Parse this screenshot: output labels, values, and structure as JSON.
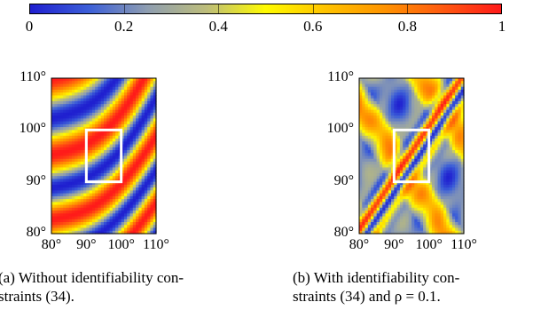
{
  "colorbar": {
    "colors": [
      "#1f1fd0",
      "#3c5fd8",
      "#8f9eb0",
      "#bdbd7a",
      "#fffb00",
      "#ffc400",
      "#ff9400",
      "#ff5a10",
      "#ff1a1a"
    ],
    "ticks": [
      "0",
      "0.2",
      "0.4",
      "0.6",
      "0.8",
      "1"
    ]
  },
  "panels": [
    {
      "id": "a",
      "xticks": [
        "80°",
        "90°",
        "100°",
        "110°"
      ],
      "yticks": [
        "80°",
        "90°",
        "100°",
        "110°"
      ],
      "caption_line1": "(a) Without identifiability con-",
      "caption_line2": "straints (34).",
      "highlight_box": {
        "x0": 90,
        "x1": 100,
        "y0": 90,
        "y1": 100
      }
    },
    {
      "id": "b",
      "xticks": [
        "80°",
        "90°",
        "100°",
        "110°"
      ],
      "yticks": [
        "80°",
        "90°",
        "100°",
        "110°"
      ],
      "caption_line1": "(b) With identifiability con-",
      "caption_line2": "straints (34) and ρ = 0.1.",
      "highlight_box": {
        "x0": 90,
        "x1": 100,
        "y0": 90,
        "y1": 100
      }
    }
  ],
  "chart_data": [
    {
      "type": "heatmap",
      "x_range": [
        80,
        110
      ],
      "y_range": [
        80,
        110
      ],
      "color_range": [
        0,
        1
      ],
      "description": "diagonal stripe pattern, values spanning 0 to 1"
    },
    {
      "type": "heatmap",
      "x_range": [
        80,
        110
      ],
      "y_range": [
        80,
        110
      ],
      "color_range": [
        0,
        1
      ],
      "description": "blob pattern with strong diagonal band, values spanning 0 to 1"
    }
  ]
}
